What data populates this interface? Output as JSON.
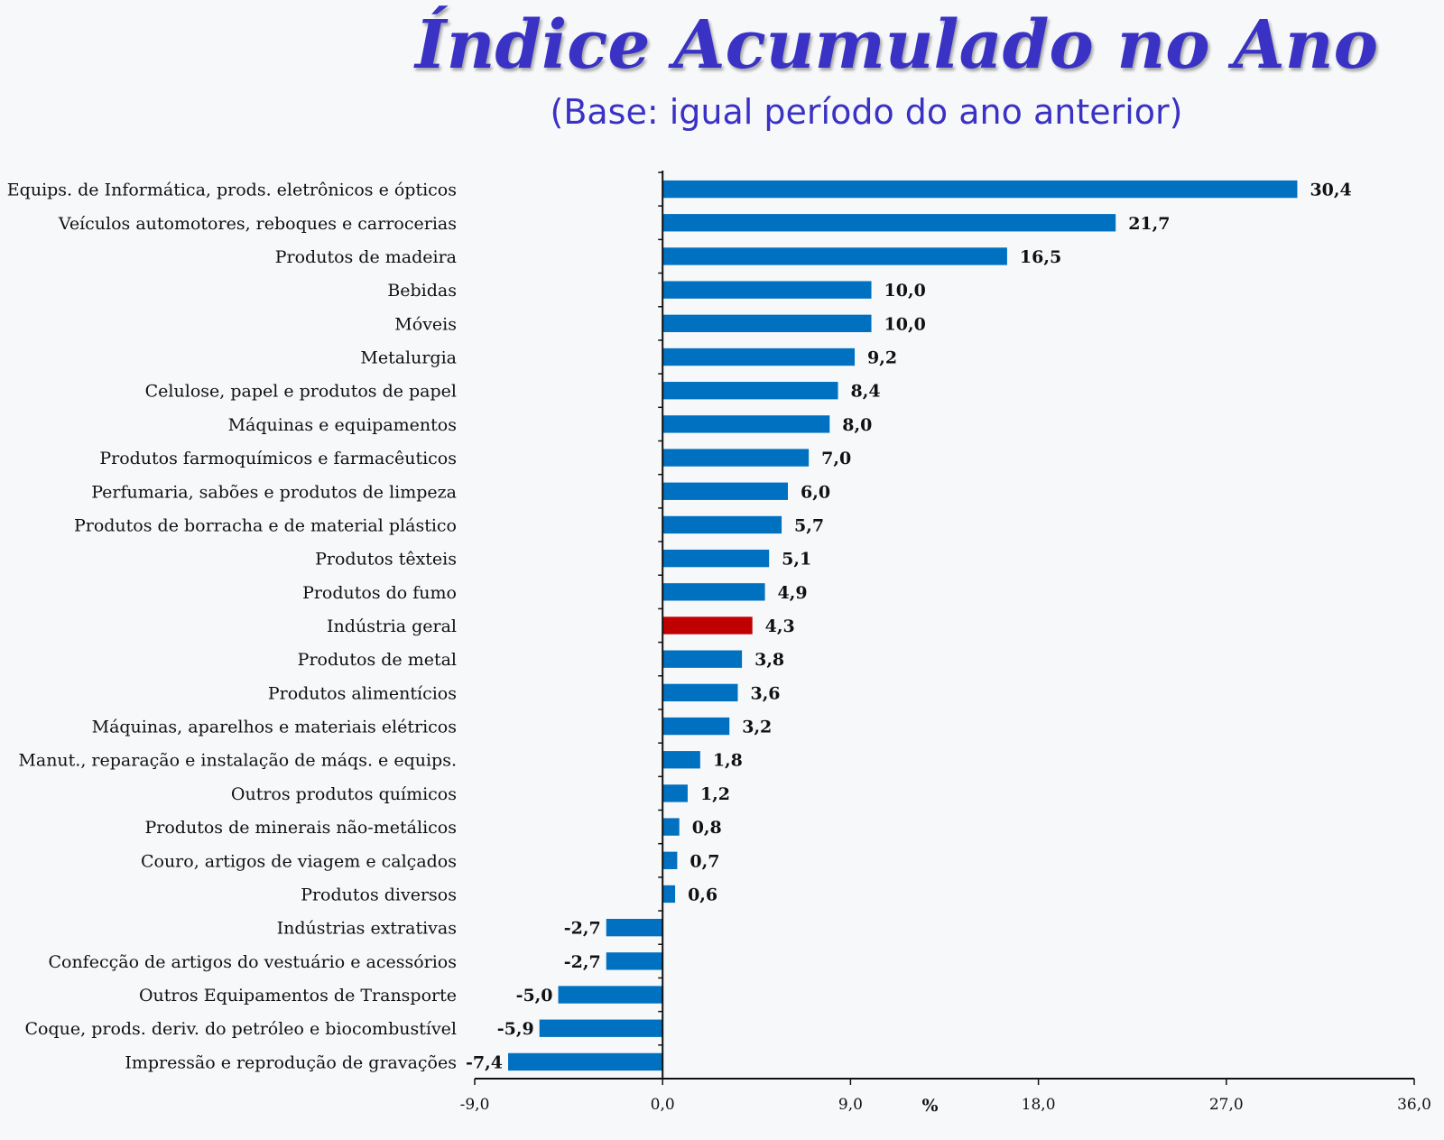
{
  "title": "Índice Acumulado no Ano",
  "subtitle": "(Base: igual período do ano anterior)",
  "chart_data": {
    "type": "bar",
    "orientation": "horizontal",
    "title": "Índice Acumulado no Ano",
    "subtitle": "(Base: igual período do ano anterior)",
    "xlabel": "%",
    "xlim": [
      -9.0,
      36.0
    ],
    "xticks": [
      -9.0,
      0.0,
      9.0,
      18.0,
      27.0,
      36.0
    ],
    "xtick_labels": [
      "-9,0",
      "0,0",
      "9,0",
      "18,0",
      "27,0",
      "36,0"
    ],
    "grid": false,
    "colors": {
      "default": "#0070c0",
      "highlight": "#c00000"
    },
    "highlight_category": "Indústria geral",
    "categories": [
      "Equips. de Informática, prods. eletrônicos e ópticos",
      "Veículos automotores, reboques e carrocerias",
      "Produtos de madeira",
      "Bebidas",
      "Móveis",
      "Metalurgia",
      "Celulose, papel e produtos de papel",
      "Máquinas e equipamentos",
      "Produtos farmoquímicos e farmacêuticos",
      "Perfumaria, sabões e produtos de limpeza",
      "Produtos de borracha e de material plástico",
      "Produtos têxteis",
      "Produtos do fumo",
      "Indústria geral",
      "Produtos de metal",
      "Produtos alimentícios",
      "Máquinas, aparelhos e materiais elétricos",
      "Manut., reparação e instalação de máqs. e equips.",
      "Outros produtos químicos",
      "Produtos de minerais não-metálicos",
      "Couro, artigos de viagem e calçados",
      "Produtos diversos",
      "Indústrias extrativas",
      "Confecção de artigos do vestuário e acessórios",
      "Outros Equipamentos de Transporte",
      "Coque, prods. deriv. do petróleo e biocombustível",
      "Impressão e reprodução de gravações"
    ],
    "values": [
      30.4,
      21.7,
      16.5,
      10.0,
      10.0,
      9.2,
      8.4,
      8.0,
      7.0,
      6.0,
      5.7,
      5.1,
      4.9,
      4.3,
      3.8,
      3.6,
      3.2,
      1.8,
      1.2,
      0.8,
      0.7,
      0.6,
      -2.7,
      -2.7,
      -5.0,
      -5.9,
      -7.4
    ],
    "value_labels": [
      "30,4",
      "21,7",
      "16,5",
      "10,0",
      "10,0",
      "9,2",
      "8,4",
      "8,0",
      "7,0",
      "6,0",
      "5,7",
      "5,1",
      "4,9",
      "4,3",
      "3,8",
      "3,6",
      "3,2",
      "1,8",
      "1,2",
      "0,8",
      "0,7",
      "0,6",
      "-2,7",
      "-2,7",
      "-5,0",
      "-5,9",
      "-7,4"
    ]
  }
}
